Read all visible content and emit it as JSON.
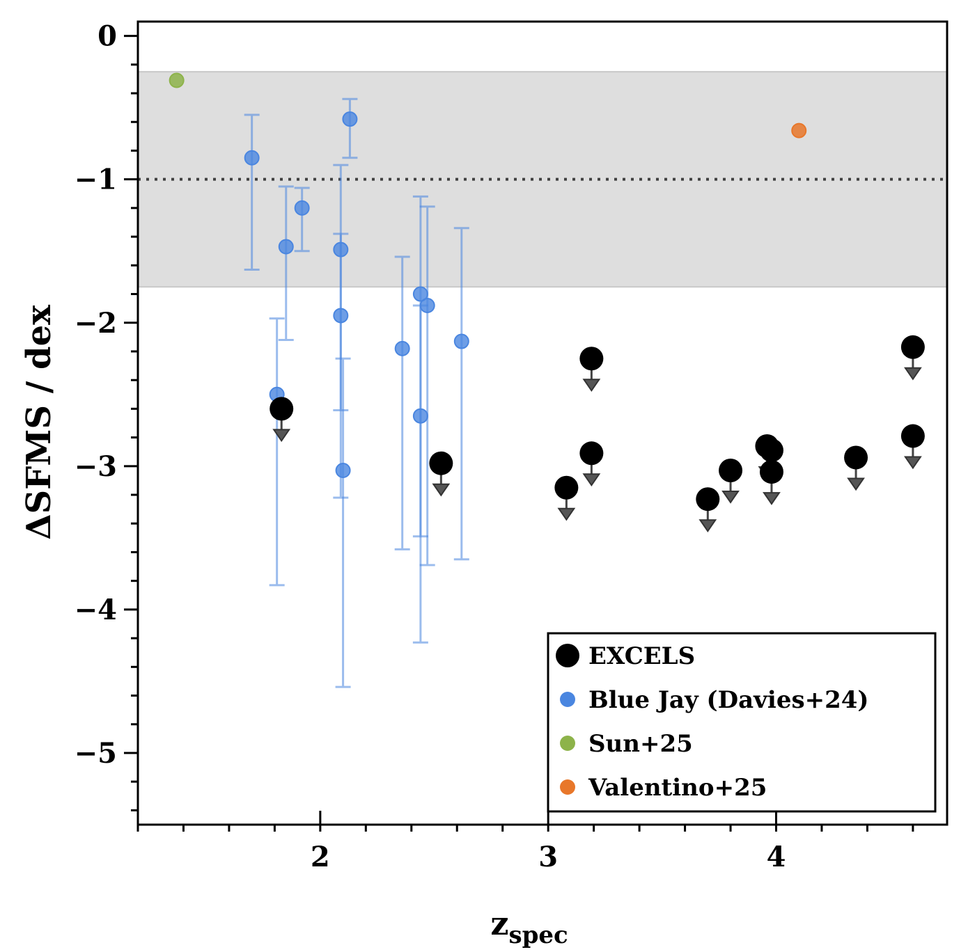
{
  "chart_data": {
    "type": "scatter",
    "xlabel": "z",
    "xlabel_sub": "spec",
    "ylabel": "ΔSFMS / dex",
    "xlim": [
      1.2,
      4.75
    ],
    "ylim": [
      -5.5,
      0.1
    ],
    "xticks": [
      2,
      3,
      4
    ],
    "xtick_labels": [
      "2",
      "3",
      "4"
    ],
    "yticks": [
      0,
      -1,
      -2,
      -3,
      -4,
      -5
    ],
    "ytick_labels": [
      "0",
      "−1",
      "−2",
      "−3",
      "−4",
      "−5"
    ],
    "reference_line": {
      "y": -1.0,
      "style": "dotted"
    },
    "shaded_band": {
      "y_low": -1.75,
      "y_high": -0.25
    },
    "legend_position": "lower-right",
    "series": [
      {
        "name": "EXCELS",
        "color": "#000000",
        "marker": "upper-limit",
        "points": [
          {
            "x": 1.83,
            "y": -2.6
          },
          {
            "x": 2.53,
            "y": -2.98
          },
          {
            "x": 3.08,
            "y": -3.15
          },
          {
            "x": 3.19,
            "y": -2.25
          },
          {
            "x": 3.19,
            "y": -2.91
          },
          {
            "x": 3.7,
            "y": -3.23
          },
          {
            "x": 3.8,
            "y": -3.03
          },
          {
            "x": 3.96,
            "y": -2.86
          },
          {
            "x": 3.98,
            "y": -2.89
          },
          {
            "x": 3.98,
            "y": -3.04
          },
          {
            "x": 4.35,
            "y": -2.94
          },
          {
            "x": 4.6,
            "y": -2.17
          },
          {
            "x": 4.6,
            "y": -2.79
          }
        ]
      },
      {
        "name": "Blue Jay (Davies+24)",
        "color": "#4a86e0",
        "marker": "errorbar",
        "points": [
          {
            "x": 1.7,
            "y": -0.85,
            "lo": -1.63,
            "hi": -0.55
          },
          {
            "x": 1.81,
            "y": -2.5,
            "lo": -3.83,
            "hi": -1.97
          },
          {
            "x": 1.85,
            "y": -1.47,
            "lo": -2.12,
            "hi": -1.05
          },
          {
            "x": 1.92,
            "y": -1.2,
            "lo": -1.5,
            "hi": -1.06
          },
          {
            "x": 2.09,
            "y": -1.49,
            "lo": -2.61,
            "hi": -0.9
          },
          {
            "x": 2.09,
            "y": -1.95,
            "lo": -3.22,
            "hi": -1.38
          },
          {
            "x": 2.1,
            "y": -3.03,
            "lo": -4.54,
            "hi": -2.25
          },
          {
            "x": 2.13,
            "y": -0.58,
            "lo": -0.85,
            "hi": -0.44
          },
          {
            "x": 2.36,
            "y": -2.18,
            "lo": -3.58,
            "hi": -1.54
          },
          {
            "x": 2.44,
            "y": -1.8,
            "lo": -3.49,
            "hi": -1.12
          },
          {
            "x": 2.44,
            "y": -2.65,
            "lo": -4.23,
            "hi": -1.88
          },
          {
            "x": 2.47,
            "y": -1.88,
            "lo": -3.69,
            "hi": -1.19
          },
          {
            "x": 2.62,
            "y": -2.13,
            "lo": -3.65,
            "hi": -1.34
          }
        ]
      },
      {
        "name": "Sun+25",
        "color": "#8db34a",
        "marker": "dot",
        "points": [
          {
            "x": 1.37,
            "y": -0.31
          }
        ]
      },
      {
        "name": "Valentino+25",
        "color": "#e8772a",
        "marker": "dot",
        "points": [
          {
            "x": 4.1,
            "y": -0.66
          }
        ]
      }
    ]
  }
}
